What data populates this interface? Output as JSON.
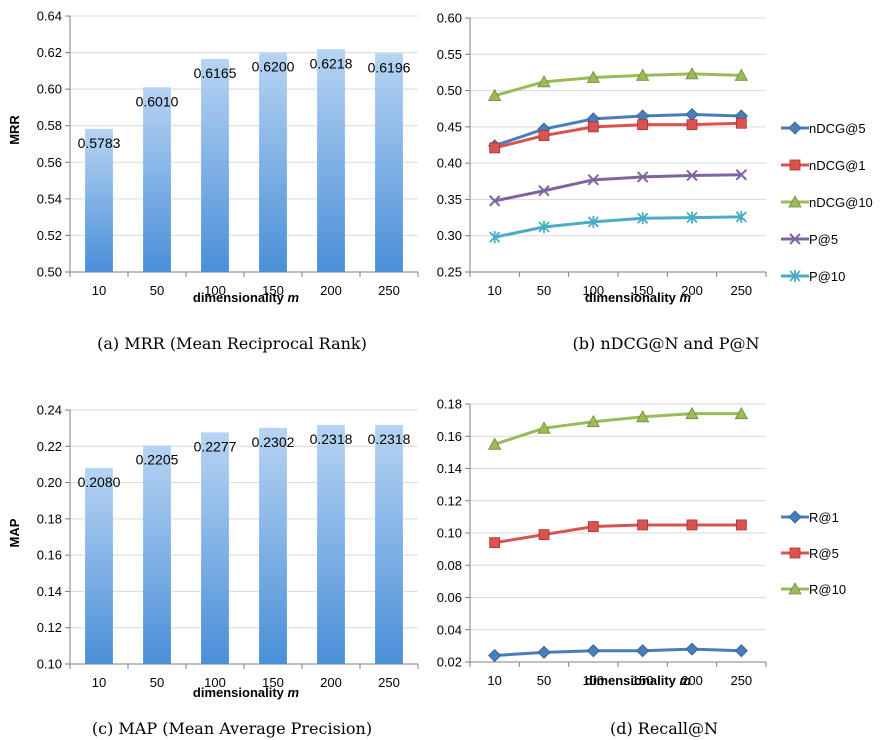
{
  "chart_data": [
    {
      "type": "bar",
      "caption": "(a) MRR (Mean Reciprocal Rank)",
      "categories": [
        "10",
        "50",
        "100",
        "150",
        "200",
        "250"
      ],
      "values": [
        0.5783,
        0.601,
        0.6165,
        0.62,
        0.6218,
        0.6196
      ],
      "data_labels": [
        "0.5783",
        "0.6010",
        "0.6165",
        "0.6200",
        "0.6218",
        "0.6196"
      ],
      "xlabel": "dimensionality",
      "xlabel_var": "m",
      "ylabel": "MRR",
      "ylim": [
        0.5,
        0.64
      ],
      "yticks": [
        "0.50",
        "0.52",
        "0.54",
        "0.56",
        "0.58",
        "0.60",
        "0.62",
        "0.64"
      ],
      "bar_color": "#5b9bd5"
    },
    {
      "type": "line",
      "caption": "(b) nDCG@N and P@N",
      "categories": [
        "10",
        "50",
        "100",
        "150",
        "200",
        "250"
      ],
      "xlabel": "dimensionality",
      "xlabel_var": "m",
      "ylabel": "",
      "ylim": [
        0.25,
        0.6
      ],
      "yticks": [
        "0.25",
        "0.30",
        "0.35",
        "0.40",
        "0.45",
        "0.50",
        "0.55",
        "0.60"
      ],
      "legend": "right",
      "series": [
        {
          "name": "nDCG@5",
          "values": [
            0.424,
            0.447,
            0.461,
            0.465,
            0.467,
            0.465
          ],
          "color": "#4a7ebb",
          "marker": "diamond"
        },
        {
          "name": "nDCG@1",
          "values": [
            0.421,
            0.438,
            0.45,
            0.453,
            0.453,
            0.455
          ],
          "color": "#d9534f",
          "marker": "square"
        },
        {
          "name": "nDCG@10",
          "values": [
            0.493,
            0.512,
            0.518,
            0.521,
            0.523,
            0.521
          ],
          "color": "#9bbb59",
          "marker": "triangle"
        },
        {
          "name": "P@5",
          "values": [
            0.348,
            0.362,
            0.377,
            0.381,
            0.383,
            0.384
          ],
          "color": "#8064a2",
          "marker": "x"
        },
        {
          "name": "P@10",
          "values": [
            0.298,
            0.312,
            0.319,
            0.324,
            0.325,
            0.326
          ],
          "color": "#4bacc6",
          "marker": "star"
        }
      ]
    },
    {
      "type": "bar",
      "caption": "(c) MAP (Mean Average Precision)",
      "categories": [
        "10",
        "50",
        "100",
        "150",
        "200",
        "250"
      ],
      "values": [
        0.208,
        0.2205,
        0.2277,
        0.2302,
        0.2318,
        0.2318
      ],
      "data_labels": [
        "0.2080",
        "0.2205",
        "0.2277",
        "0.2302",
        "0.2318",
        "0.2318"
      ],
      "xlabel": "dimensionality",
      "xlabel_var": "m",
      "ylabel": "MAP",
      "ylim": [
        0.1,
        0.24
      ],
      "yticks": [
        "0.10",
        "0.12",
        "0.14",
        "0.16",
        "0.18",
        "0.20",
        "0.22",
        "0.24"
      ],
      "bar_color": "#5b9bd5"
    },
    {
      "type": "line",
      "caption": "(d) Recall@N",
      "categories": [
        "10",
        "50",
        "100",
        "150",
        "200",
        "250"
      ],
      "xlabel": "dimensionality",
      "xlabel_var": "m",
      "ylabel": "",
      "ylim": [
        0.02,
        0.18
      ],
      "yticks": [
        "0.02",
        "0.04",
        "0.06",
        "0.08",
        "0.10",
        "0.12",
        "0.14",
        "0.16",
        "0.18"
      ],
      "legend": "right",
      "series": [
        {
          "name": "R@1",
          "values": [
            0.024,
            0.026,
            0.027,
            0.027,
            0.028,
            0.027
          ],
          "color": "#4a7ebb",
          "marker": "diamond"
        },
        {
          "name": "R@5",
          "values": [
            0.094,
            0.099,
            0.104,
            0.105,
            0.105,
            0.105
          ],
          "color": "#d9534f",
          "marker": "square"
        },
        {
          "name": "R@10",
          "values": [
            0.155,
            0.165,
            0.169,
            0.172,
            0.174,
            0.174
          ],
          "color": "#9bbb59",
          "marker": "triangle"
        }
      ]
    }
  ]
}
